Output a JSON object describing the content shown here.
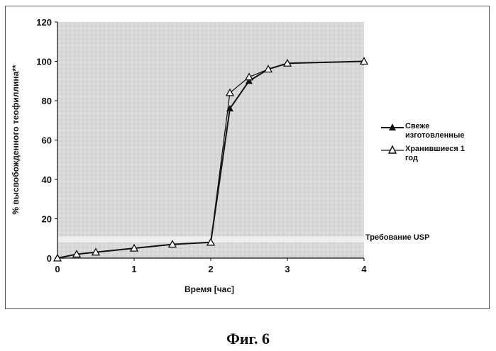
{
  "figure_caption": "Фиг. 6",
  "legend": [
    {
      "label": "Свеже изготовленные",
      "marker": "filled-triangle"
    },
    {
      "label": "Хранившиеся 1 год",
      "marker": "open-triangle"
    }
  ],
  "annotation": "Требование USP",
  "colors": {
    "line": "#111111",
    "plot_background": "#dcdcdc",
    "usp_band": "#eeeeee"
  },
  "chart_data": {
    "type": "line",
    "xlabel": "Время [час]",
    "ylabel": "% высвобожденного теофиллина**",
    "xlim": [
      0,
      4
    ],
    "ylim": [
      0,
      120
    ],
    "xticks": [
      0,
      1,
      2,
      3,
      4
    ],
    "yticks": [
      0,
      20,
      40,
      60,
      80,
      100,
      120
    ],
    "grid": true,
    "legend_position": "right",
    "usp_requirement_band": [
      8,
      11
    ],
    "series": [
      {
        "name": "Свеже изготовленные",
        "x": [
          0,
          0.25,
          0.5,
          1,
          1.5,
          2,
          2.25,
          2.5,
          2.75,
          3,
          4
        ],
        "y": [
          0,
          2,
          3,
          5,
          7,
          8,
          76,
          90,
          96,
          99,
          100
        ]
      },
      {
        "name": "Хранившиеся 1 год",
        "x": [
          0,
          0.25,
          0.5,
          1,
          1.5,
          2,
          2.25,
          2.5,
          2.75,
          3,
          4
        ],
        "y": [
          0,
          2,
          3,
          5,
          7,
          8,
          84,
          92,
          96,
          99,
          100
        ]
      }
    ]
  }
}
